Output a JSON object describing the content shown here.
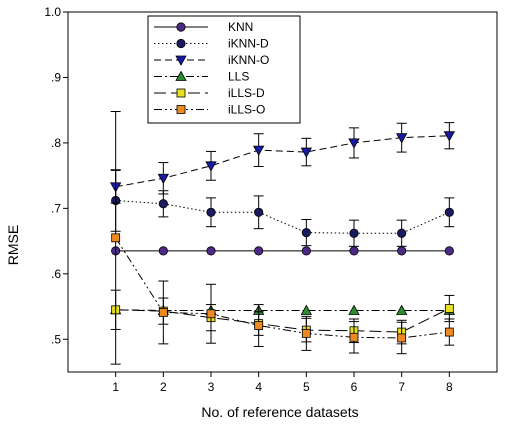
{
  "chart_data": {
    "type": "line",
    "xlabel": "No. of  reference datasets",
    "ylabel": "RMSE",
    "xlim": [
      0,
      9
    ],
    "ylim": [
      0.45,
      1.0
    ],
    "x": [
      1,
      2,
      3,
      4,
      5,
      6,
      7,
      8
    ],
    "x_tick_labels": [
      "1",
      "2",
      "3",
      "4",
      "5",
      "6",
      "7",
      "8"
    ],
    "y_ticks": [
      0.5,
      0.6,
      0.7,
      0.8,
      0.9,
      1.0
    ],
    "y_tick_labels": [
      ".5",
      ".6",
      ".7",
      ".8",
      ".9",
      "1.0"
    ],
    "legend_position": "top-left",
    "series": [
      {
        "name": "KNN",
        "color": "#4b2a85",
        "marker": "circle",
        "line_style": "solid",
        "values": [
          0.635,
          0.635,
          0.635,
          0.635,
          0.635,
          0.635,
          0.635,
          0.635
        ],
        "errors": [
          0.0,
          0.0,
          0.0,
          0.0,
          0.0,
          0.0,
          0.0,
          0.0
        ]
      },
      {
        "name": "iKNN-D",
        "color": "#1a1a5e",
        "marker": "circle",
        "line_style": "dotted",
        "values": [
          0.712,
          0.707,
          0.694,
          0.694,
          0.663,
          0.662,
          0.662,
          0.694
        ],
        "errors": [
          0.047,
          0.02,
          0.022,
          0.025,
          0.02,
          0.02,
          0.02,
          0.022
        ]
      },
      {
        "name": "iKNN-O",
        "color": "#1a1aa8",
        "marker": "triangle-down",
        "line_style": "dash",
        "values": [
          0.733,
          0.746,
          0.765,
          0.789,
          0.786,
          0.8,
          0.808,
          0.811
        ],
        "errors": [
          0.025,
          0.024,
          0.022,
          0.025,
          0.021,
          0.023,
          0.022,
          0.02
        ]
      },
      {
        "name": "LLS",
        "color": "#2e8b2e",
        "marker": "triangle-up",
        "line_style": "dash-dot",
        "values": [
          0.545,
          0.544,
          0.544,
          0.544,
          0.544,
          0.544,
          0.544,
          0.544
        ],
        "errors": [
          0.0,
          0.0,
          0.0,
          0.0,
          0.0,
          0.0,
          0.0,
          0.0
        ]
      },
      {
        "name": "iLLS-D",
        "color": "#e8e020",
        "marker": "square",
        "line_style": "long-dash",
        "values": [
          0.545,
          0.543,
          0.533,
          0.524,
          0.514,
          0.513,
          0.511,
          0.547
        ],
        "errors": [
          0.03,
          0.02,
          0.02,
          0.018,
          0.018,
          0.018,
          0.018,
          0.02
        ]
      },
      {
        "name": "iLLS-O",
        "color": "#ee8a22",
        "marker": "square",
        "line_style": "dash-dot-dot",
        "values": [
          0.655,
          0.541,
          0.539,
          0.521,
          0.509,
          0.503,
          0.502,
          0.511
        ],
        "errors": [
          0.193,
          0.048,
          0.045,
          0.032,
          0.026,
          0.024,
          0.024,
          0.02
        ]
      }
    ]
  }
}
